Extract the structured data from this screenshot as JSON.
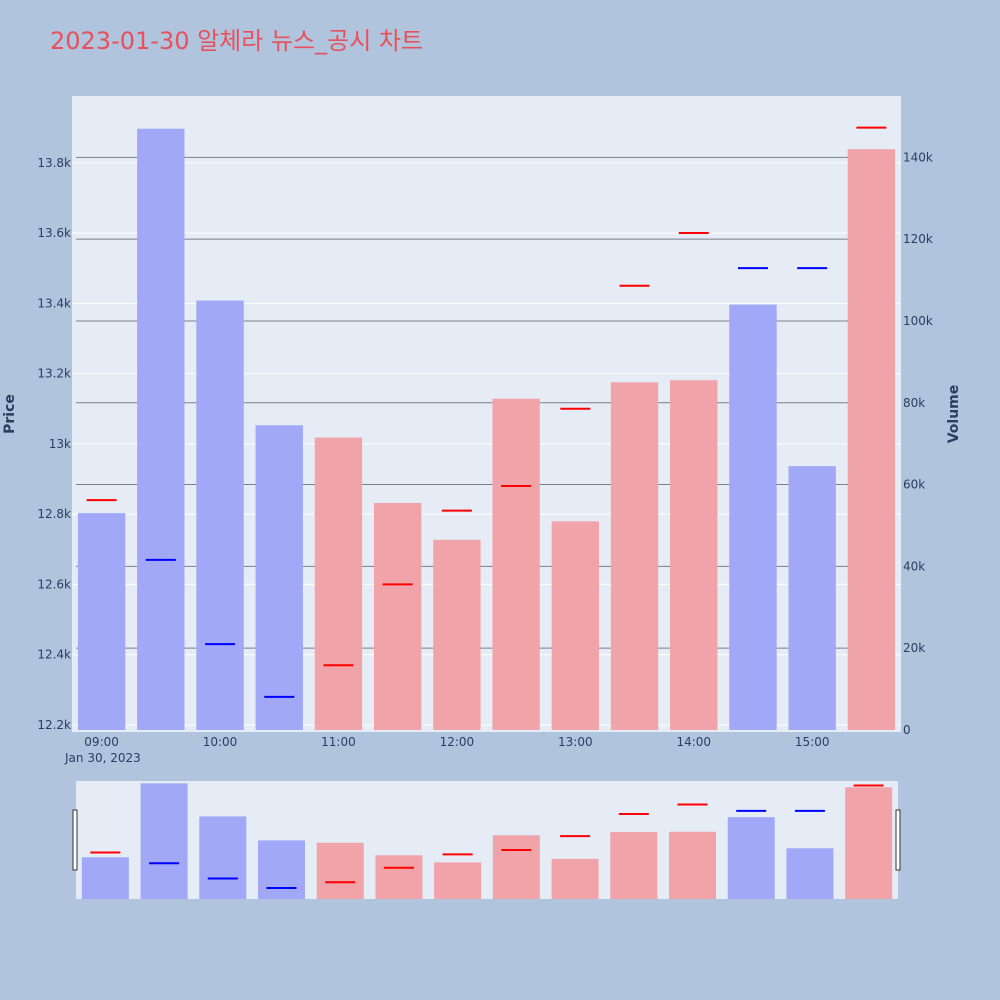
{
  "chart_data": {
    "type": "bar",
    "title": "2023-01-30 알체라 뉴스_공시 차트",
    "x": [
      "09:00",
      "09:30",
      "10:00",
      "10:30",
      "11:00",
      "11:30",
      "12:00",
      "12:30",
      "13:00",
      "13:30",
      "14:00",
      "14:30",
      "15:00",
      "15:30"
    ],
    "x_tick_labels": [
      "09:00",
      "10:00",
      "11:00",
      "12:00",
      "13:00",
      "14:00",
      "15:00"
    ],
    "x_date_label": "Jan 30, 2023",
    "y_label": "Price",
    "y2_label": "Volume",
    "y_range": [
      12180,
      13990
    ],
    "y_ticks": [
      12200,
      12400,
      12600,
      12800,
      13000,
      13200,
      13400,
      13600,
      13800
    ],
    "y_tick_labels": [
      "12.2k",
      "12.4k",
      "12.6k",
      "12.8k",
      "13k",
      "13.2k",
      "13.4k",
      "13.6k",
      "13.8k"
    ],
    "y2_range": [
      -500,
      155000
    ],
    "y2_ticks": [
      0,
      20000,
      40000,
      60000,
      80000,
      100000,
      120000,
      140000
    ],
    "y2_tick_labels": [
      "0",
      "20k",
      "40k",
      "60k",
      "80k",
      "100k",
      "120k",
      "140k"
    ],
    "series": [
      {
        "kind": "price_marker",
        "values": [
          12840,
          12670,
          12430,
          12280,
          12370,
          12600,
          12810,
          12880,
          13100,
          13450,
          13600,
          13500,
          13500,
          13900
        ],
        "colors": [
          "red",
          "blue",
          "blue",
          "blue",
          "red",
          "red",
          "red",
          "red",
          "red",
          "red",
          "red",
          "blue",
          "blue",
          "red"
        ]
      },
      {
        "kind": "volume_bar",
        "values": [
          53000,
          147000,
          105000,
          74500,
          71500,
          55500,
          46500,
          81000,
          51000,
          85000,
          85500,
          104000,
          64500,
          142000
        ],
        "colors": [
          "blue",
          "blue",
          "blue",
          "blue",
          "red",
          "red",
          "red",
          "red",
          "red",
          "red",
          "red",
          "blue",
          "blue",
          "red"
        ]
      }
    ],
    "colors": {
      "red_bar": "#f0a3a8",
      "blue_bar": "#a0a8f7",
      "red_marker": "#ff0000",
      "blue_marker": "#0000ff",
      "plot_bg": "#e5ecf6",
      "page_bg": "#b0c4de"
    },
    "range_slider": true,
    "legend": "none",
    "grid": true
  }
}
